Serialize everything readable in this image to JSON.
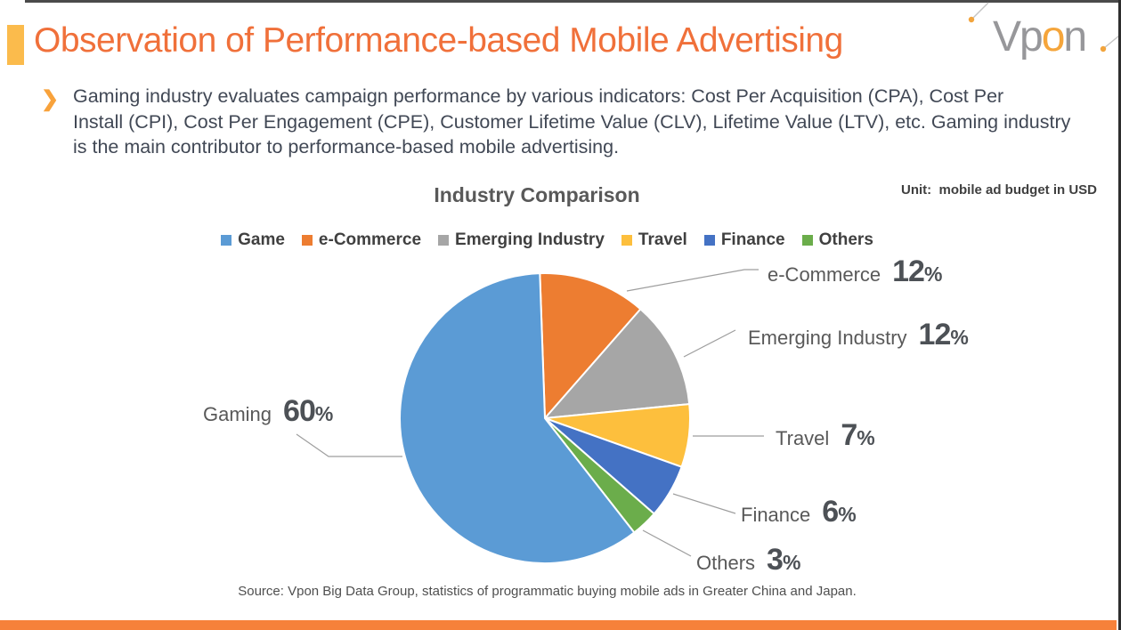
{
  "frame": {
    "top_border_color": "#4A4A4A",
    "right_border_color": "#2E2E2E",
    "bottom_bar_color": "#F6813A"
  },
  "header": {
    "title": "Observation of Performance-based Mobile Advertising",
    "title_color": "#F0703A",
    "accent_bar_color": "#FBBB4C",
    "logo": {
      "part1": "Vp",
      "orange_part": "o",
      "part2": "n",
      "gray_color": "#97979A",
      "orange_color": "#F5A53B"
    }
  },
  "bullet": {
    "glyph": "❯",
    "lines": [
      "Gaming industry evaluates campaign performance by various indicators: Cost Per Acquisition (CPA), Cost Per",
      "Install (CPI), Cost Per Engagement (CPE), Customer Lifetime Value (CLV), Lifetime Value (LTV), etc. Gaming industry",
      "is the main contributor to performance-based mobile advertising."
    ]
  },
  "chart": {
    "title": "Industry Comparison",
    "unit_note": "Unit:  mobile ad budget in USD",
    "source": "Source: Vpon Big Data Group, statistics of programmatic buying mobile ads in Greater China and Japan."
  },
  "chart_data": {
    "type": "pie",
    "title": "Industry Comparison",
    "unit": "mobile ad budget in USD",
    "legend_position": "top",
    "start_angle_deg": -2,
    "direction": "clockwise",
    "percent_sign": "%",
    "legend": [
      {
        "label": "Game",
        "color": "#5B9BD5"
      },
      {
        "label": "e-Commerce",
        "color": "#ED7D31"
      },
      {
        "label": "Emerging Industry",
        "color": "#A6A6A6"
      },
      {
        "label": "Travel",
        "color": "#FDBF3D"
      },
      {
        "label": "Finance",
        "color": "#4472C4"
      },
      {
        "label": "Others",
        "color": "#6BAD4B"
      }
    ],
    "slices": [
      {
        "label": "e-Commerce",
        "callout_label": "e-Commerce",
        "value": 12,
        "color": "#ED7D31"
      },
      {
        "label": "Emerging Industry",
        "callout_label": "Emerging Industry",
        "value": 12,
        "color": "#A6A6A6"
      },
      {
        "label": "Travel",
        "callout_label": "Travel",
        "value": 7,
        "color": "#FDBF3D"
      },
      {
        "label": "Finance",
        "callout_label": "Finance",
        "value": 6,
        "color": "#4472C4"
      },
      {
        "label": "Others",
        "callout_label": "Others",
        "value": 3,
        "color": "#6BAD4B"
      },
      {
        "label": "Game",
        "callout_label": "Gaming",
        "value": 60,
        "color": "#5B9BD5"
      }
    ]
  }
}
